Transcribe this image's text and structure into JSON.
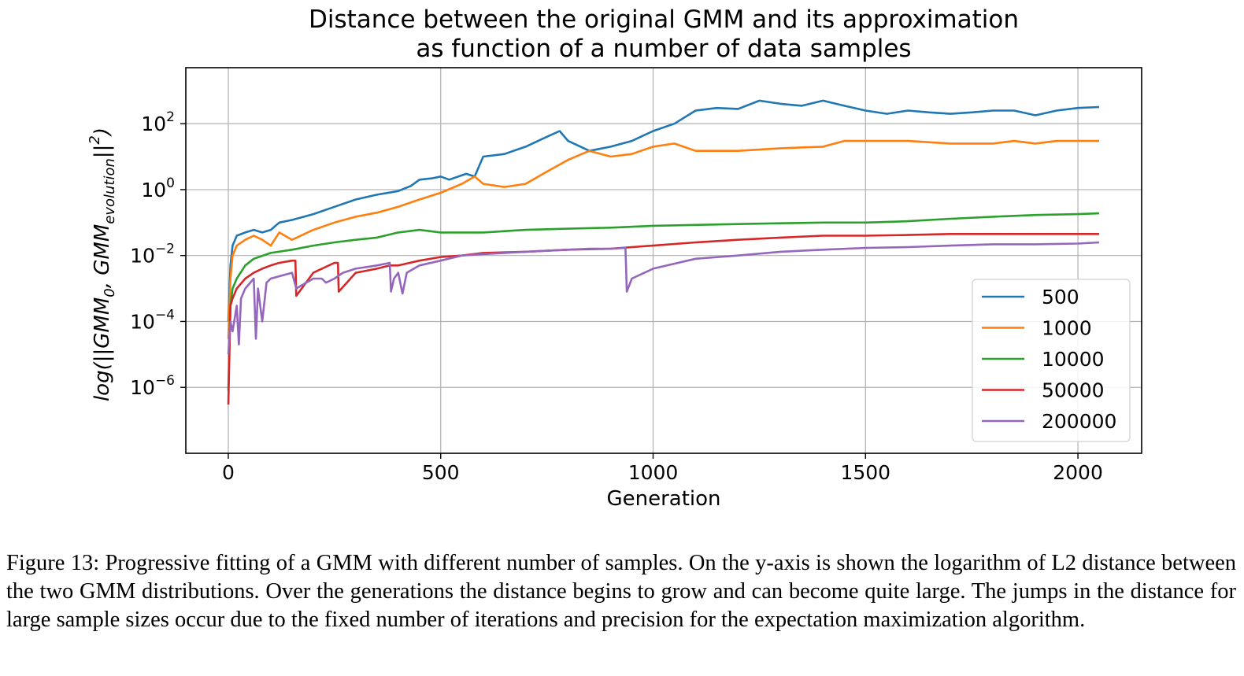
{
  "chart_data": {
    "type": "line",
    "title": "Distance between the original GMM and its approximation\nas function of a number of data samples",
    "xlabel": "Generation",
    "ylabel": "log(||GMM_0, GMM_evolution||^2)",
    "yscale": "log",
    "xlim": [
      -100,
      2150
    ],
    "ylim": [
      1e-08,
      5000
    ],
    "x_ticks": [
      0,
      500,
      1000,
      1500,
      2000
    ],
    "x_tick_labels": [
      "0",
      "500",
      "1000",
      "1500",
      "2000"
    ],
    "y_ticks": [
      1e-06,
      0.0001,
      0.01,
      1,
      100
    ],
    "y_tick_labels": [
      {
        "base": "10",
        "exp": "−6"
      },
      {
        "base": "10",
        "exp": "−4"
      },
      {
        "base": "10",
        "exp": "−2"
      },
      {
        "base": "10",
        "exp": "0"
      },
      {
        "base": "10",
        "exp": "2"
      }
    ],
    "grid": true,
    "legend_position": "lower-right",
    "series": [
      {
        "name": "500",
        "color": "#1f77b4",
        "x": [
          0,
          5,
          10,
          20,
          40,
          60,
          80,
          100,
          120,
          150,
          200,
          250,
          300,
          350,
          400,
          430,
          450,
          480,
          500,
          520,
          560,
          580,
          600,
          650,
          700,
          750,
          780,
          800,
          850,
          900,
          950,
          1000,
          1050,
          1100,
          1150,
          1200,
          1250,
          1300,
          1350,
          1400,
          1450,
          1500,
          1550,
          1600,
          1650,
          1700,
          1750,
          1800,
          1850,
          1900,
          1950,
          2000,
          2050
        ],
        "y": [
          0.0001,
          0.005,
          0.02,
          0.04,
          0.05,
          0.06,
          0.05,
          0.06,
          0.1,
          0.12,
          0.18,
          0.3,
          0.5,
          0.7,
          0.9,
          1.3,
          2,
          2.2,
          2.5,
          2,
          3,
          2.5,
          10,
          12,
          20,
          40,
          60,
          30,
          15,
          20,
          30,
          60,
          100,
          250,
          300,
          280,
          500,
          400,
          350,
          500,
          350,
          250,
          200,
          250,
          220,
          200,
          220,
          250,
          250,
          180,
          250,
          300,
          320
        ]
      },
      {
        "name": "1000",
        "color": "#ff7f0e",
        "x": [
          0,
          5,
          10,
          20,
          40,
          60,
          80,
          100,
          120,
          150,
          200,
          250,
          300,
          350,
          400,
          450,
          500,
          550,
          580,
          600,
          650,
          700,
          750,
          800,
          850,
          900,
          950,
          1000,
          1050,
          1100,
          1150,
          1200,
          1300,
          1400,
          1450,
          1500,
          1600,
          1700,
          1800,
          1850,
          1900,
          1950,
          2000,
          2050
        ],
        "y": [
          3e-05,
          0.002,
          0.01,
          0.02,
          0.03,
          0.04,
          0.03,
          0.02,
          0.05,
          0.03,
          0.06,
          0.1,
          0.15,
          0.2,
          0.3,
          0.5,
          0.8,
          1.5,
          2.5,
          1.5,
          1.2,
          1.5,
          3.5,
          8,
          15,
          10,
          12,
          20,
          25,
          15,
          15,
          15,
          18,
          20,
          30,
          30,
          30,
          25,
          25,
          30,
          25,
          30,
          30,
          30
        ]
      },
      {
        "name": "10000",
        "color": "#2ca02c",
        "x": [
          0,
          5,
          10,
          20,
          40,
          60,
          100,
          150,
          200,
          250,
          300,
          350,
          400,
          450,
          500,
          600,
          700,
          800,
          900,
          1000,
          1100,
          1200,
          1300,
          1400,
          1500,
          1600,
          1700,
          1800,
          1900,
          2000,
          2050
        ],
        "y": [
          8e-07,
          0.0003,
          0.001,
          0.002,
          0.005,
          0.008,
          0.012,
          0.015,
          0.02,
          0.025,
          0.03,
          0.035,
          0.05,
          0.06,
          0.05,
          0.05,
          0.06,
          0.065,
          0.07,
          0.08,
          0.085,
          0.09,
          0.095,
          0.1,
          0.1,
          0.11,
          0.13,
          0.15,
          0.17,
          0.18,
          0.19
        ]
      },
      {
        "name": "50000",
        "color": "#d62728",
        "x": [
          0,
          5,
          10,
          20,
          40,
          60,
          80,
          100,
          120,
          150,
          158,
          160,
          200,
          250,
          258,
          260,
          300,
          350,
          380,
          400,
          450,
          500,
          550,
          600,
          700,
          800,
          900,
          950,
          1000,
          1100,
          1200,
          1300,
          1400,
          1500,
          1600,
          1700,
          1800,
          1900,
          2000,
          2050
        ],
        "y": [
          3e-07,
          0.0003,
          0.0005,
          0.001,
          0.002,
          0.003,
          0.004,
          0.005,
          0.006,
          0.007,
          0.007,
          0.0006,
          0.003,
          0.006,
          0.006,
          0.0008,
          0.003,
          0.004,
          0.005,
          0.005,
          0.007,
          0.009,
          0.01,
          0.012,
          0.013,
          0.015,
          0.016,
          0.018,
          0.02,
          0.025,
          0.03,
          0.035,
          0.04,
          0.04,
          0.042,
          0.045,
          0.045,
          0.045,
          0.045,
          0.045
        ]
      },
      {
        "name": "200000",
        "color": "#9467bd",
        "x": [
          0,
          5,
          10,
          20,
          25,
          30,
          40,
          60,
          65,
          70,
          80,
          90,
          100,
          150,
          160,
          200,
          220,
          230,
          250,
          270,
          300,
          350,
          380,
          383,
          390,
          400,
          410,
          420,
          450,
          500,
          550,
          600,
          650,
          700,
          750,
          800,
          850,
          900,
          935,
          938,
          950,
          1000,
          1100,
          1200,
          1300,
          1400,
          1500,
          1600,
          1700,
          1800,
          1900,
          2000,
          2050
        ],
        "y": [
          1e-05,
          0.0001,
          5e-05,
          0.0003,
          2e-05,
          0.0005,
          0.001,
          0.002,
          3e-05,
          0.001,
          0.0001,
          0.0015,
          0.002,
          0.003,
          0.001,
          0.002,
          0.002,
          0.0015,
          0.002,
          0.003,
          0.004,
          0.005,
          0.006,
          0.0008,
          0.002,
          0.003,
          0.0007,
          0.003,
          0.005,
          0.007,
          0.01,
          0.011,
          0.012,
          0.013,
          0.014,
          0.015,
          0.016,
          0.016,
          0.017,
          0.0008,
          0.002,
          0.004,
          0.008,
          0.01,
          0.013,
          0.015,
          0.017,
          0.018,
          0.02,
          0.022,
          0.022,
          0.023,
          0.025
        ]
      }
    ]
  },
  "caption": {
    "text": "Figure 13: Progressive fitting of a GMM with different number of samples. On the y-axis is shown the logarithm of L2 distance between the two GMM distributions. Over the generations the distance begins to grow and can become quite large. The jumps in the distance for large sample sizes occur due to the fixed number of iterations and precision for the expectation maximization algorithm."
  }
}
